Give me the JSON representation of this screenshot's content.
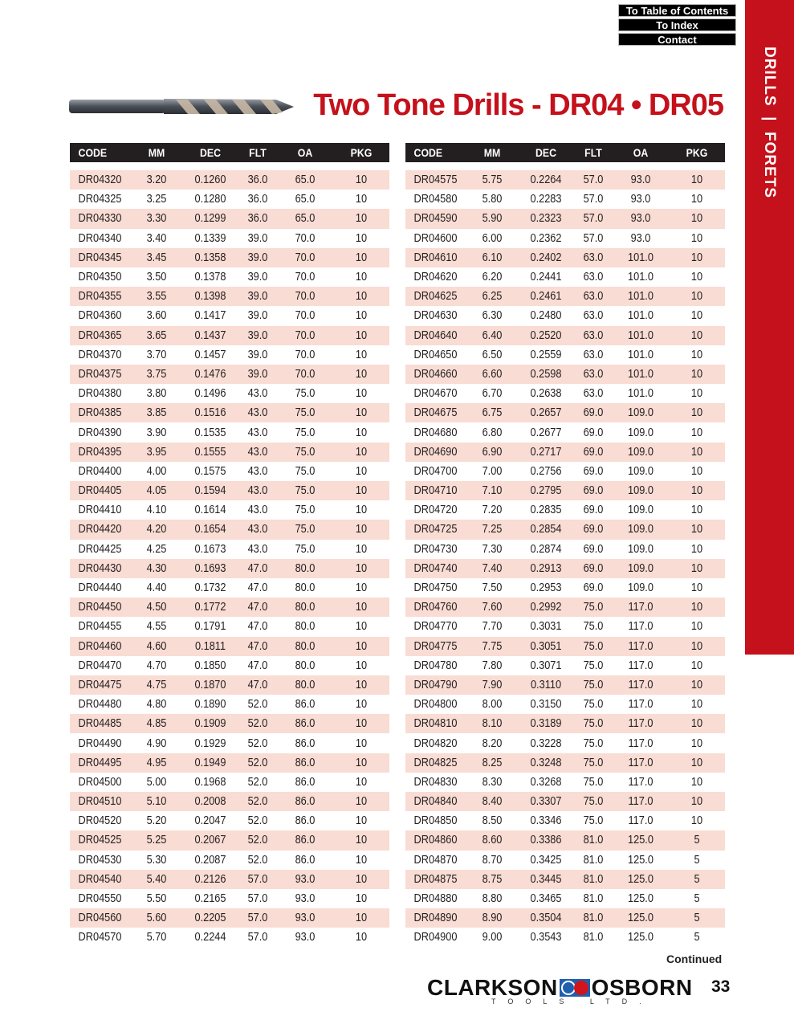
{
  "nav": {
    "toc": "To Table of Contents",
    "index": "To Index",
    "contact": "Contact"
  },
  "sidebar": {
    "label": "DRILLS  |  FORETS",
    "color": "#c4111b"
  },
  "title": "Two Tone Drills - DR04 • DR05",
  "columns": [
    "CODE",
    "MM",
    "DEC",
    "FLT",
    "OA",
    "PKG"
  ],
  "tables": [
    {
      "rows": [
        [
          "DR04320",
          "3.20",
          "0.1260",
          "36.0",
          "65.0",
          "10"
        ],
        [
          "DR04325",
          "3.25",
          "0.1280",
          "36.0",
          "65.0",
          "10"
        ],
        [
          "DR04330",
          "3.30",
          "0.1299",
          "36.0",
          "65.0",
          "10"
        ],
        [
          "DR04340",
          "3.40",
          "0.1339",
          "39.0",
          "70.0",
          "10"
        ],
        [
          "DR04345",
          "3.45",
          "0.1358",
          "39.0",
          "70.0",
          "10"
        ],
        [
          "DR04350",
          "3.50",
          "0.1378",
          "39.0",
          "70.0",
          "10"
        ],
        [
          "DR04355",
          "3.55",
          "0.1398",
          "39.0",
          "70.0",
          "10"
        ],
        [
          "DR04360",
          "3.60",
          "0.1417",
          "39.0",
          "70.0",
          "10"
        ],
        [
          "DR04365",
          "3.65",
          "0.1437",
          "39.0",
          "70.0",
          "10"
        ],
        [
          "DR04370",
          "3.70",
          "0.1457",
          "39.0",
          "70.0",
          "10"
        ],
        [
          "DR04375",
          "3.75",
          "0.1476",
          "39.0",
          "70.0",
          "10"
        ],
        [
          "DR04380",
          "3.80",
          "0.1496",
          "43.0",
          "75.0",
          "10"
        ],
        [
          "DR04385",
          "3.85",
          "0.1516",
          "43.0",
          "75.0",
          "10"
        ],
        [
          "DR04390",
          "3.90",
          "0.1535",
          "43.0",
          "75.0",
          "10"
        ],
        [
          "DR04395",
          "3.95",
          "0.1555",
          "43.0",
          "75.0",
          "10"
        ],
        [
          "DR04400",
          "4.00",
          "0.1575",
          "43.0",
          "75.0",
          "10"
        ],
        [
          "DR04405",
          "4.05",
          "0.1594",
          "43.0",
          "75.0",
          "10"
        ],
        [
          "DR04410",
          "4.10",
          "0.1614",
          "43.0",
          "75.0",
          "10"
        ],
        [
          "DR04420",
          "4.20",
          "0.1654",
          "43.0",
          "75.0",
          "10"
        ],
        [
          "DR04425",
          "4.25",
          "0.1673",
          "43.0",
          "75.0",
          "10"
        ],
        [
          "DR04430",
          "4.30",
          "0.1693",
          "47.0",
          "80.0",
          "10"
        ],
        [
          "DR04440",
          "4.40",
          "0.1732",
          "47.0",
          "80.0",
          "10"
        ],
        [
          "DR04450",
          "4.50",
          "0.1772",
          "47.0",
          "80.0",
          "10"
        ],
        [
          "DR04455",
          "4.55",
          "0.1791",
          "47.0",
          "80.0",
          "10"
        ],
        [
          "DR04460",
          "4.60",
          "0.1811",
          "47.0",
          "80.0",
          "10"
        ],
        [
          "DR04470",
          "4.70",
          "0.1850",
          "47.0",
          "80.0",
          "10"
        ],
        [
          "DR04475",
          "4.75",
          "0.1870",
          "47.0",
          "80.0",
          "10"
        ],
        [
          "DR04480",
          "4.80",
          "0.1890",
          "52.0",
          "86.0",
          "10"
        ],
        [
          "DR04485",
          "4.85",
          "0.1909",
          "52.0",
          "86.0",
          "10"
        ],
        [
          "DR04490",
          "4.90",
          "0.1929",
          "52.0",
          "86.0",
          "10"
        ],
        [
          "DR04495",
          "4.95",
          "0.1949",
          "52.0",
          "86.0",
          "10"
        ],
        [
          "DR04500",
          "5.00",
          "0.1968",
          "52.0",
          "86.0",
          "10"
        ],
        [
          "DR04510",
          "5.10",
          "0.2008",
          "52.0",
          "86.0",
          "10"
        ],
        [
          "DR04520",
          "5.20",
          "0.2047",
          "52.0",
          "86.0",
          "10"
        ],
        [
          "DR04525",
          "5.25",
          "0.2067",
          "52.0",
          "86.0",
          "10"
        ],
        [
          "DR04530",
          "5.30",
          "0.2087",
          "52.0",
          "86.0",
          "10"
        ],
        [
          "DR04540",
          "5.40",
          "0.2126",
          "57.0",
          "93.0",
          "10"
        ],
        [
          "DR04550",
          "5.50",
          "0.2165",
          "57.0",
          "93.0",
          "10"
        ],
        [
          "DR04560",
          "5.60",
          "0.2205",
          "57.0",
          "93.0",
          "10"
        ],
        [
          "DR04570",
          "5.70",
          "0.2244",
          "57.0",
          "93.0",
          "10"
        ]
      ]
    },
    {
      "rows": [
        [
          "DR04575",
          "5.75",
          "0.2264",
          "57.0",
          "93.0",
          "10"
        ],
        [
          "DR04580",
          "5.80",
          "0.2283",
          "57.0",
          "93.0",
          "10"
        ],
        [
          "DR04590",
          "5.90",
          "0.2323",
          "57.0",
          "93.0",
          "10"
        ],
        [
          "DR04600",
          "6.00",
          "0.2362",
          "57.0",
          "93.0",
          "10"
        ],
        [
          "DR04610",
          "6.10",
          "0.2402",
          "63.0",
          "101.0",
          "10"
        ],
        [
          "DR04620",
          "6.20",
          "0.2441",
          "63.0",
          "101.0",
          "10"
        ],
        [
          "DR04625",
          "6.25",
          "0.2461",
          "63.0",
          "101.0",
          "10"
        ],
        [
          "DR04630",
          "6.30",
          "0.2480",
          "63.0",
          "101.0",
          "10"
        ],
        [
          "DR04640",
          "6.40",
          "0.2520",
          "63.0",
          "101.0",
          "10"
        ],
        [
          "DR04650",
          "6.50",
          "0.2559",
          "63.0",
          "101.0",
          "10"
        ],
        [
          "DR04660",
          "6.60",
          "0.2598",
          "63.0",
          "101.0",
          "10"
        ],
        [
          "DR04670",
          "6.70",
          "0.2638",
          "63.0",
          "101.0",
          "10"
        ],
        [
          "DR04675",
          "6.75",
          "0.2657",
          "69.0",
          "109.0",
          "10"
        ],
        [
          "DR04680",
          "6.80",
          "0.2677",
          "69.0",
          "109.0",
          "10"
        ],
        [
          "DR04690",
          "6.90",
          "0.2717",
          "69.0",
          "109.0",
          "10"
        ],
        [
          "DR04700",
          "7.00",
          "0.2756",
          "69.0",
          "109.0",
          "10"
        ],
        [
          "DR04710",
          "7.10",
          "0.2795",
          "69.0",
          "109.0",
          "10"
        ],
        [
          "DR04720",
          "7.20",
          "0.2835",
          "69.0",
          "109.0",
          "10"
        ],
        [
          "DR04725",
          "7.25",
          "0.2854",
          "69.0",
          "109.0",
          "10"
        ],
        [
          "DR04730",
          "7.30",
          "0.2874",
          "69.0",
          "109.0",
          "10"
        ],
        [
          "DR04740",
          "7.40",
          "0.2913",
          "69.0",
          "109.0",
          "10"
        ],
        [
          "DR04750",
          "7.50",
          "0.2953",
          "69.0",
          "109.0",
          "10"
        ],
        [
          "DR04760",
          "7.60",
          "0.2992",
          "75.0",
          "117.0",
          "10"
        ],
        [
          "DR04770",
          "7.70",
          "0.3031",
          "75.0",
          "117.0",
          "10"
        ],
        [
          "DR04775",
          "7.75",
          "0.3051",
          "75.0",
          "117.0",
          "10"
        ],
        [
          "DR04780",
          "7.80",
          "0.3071",
          "75.0",
          "117.0",
          "10"
        ],
        [
          "DR04790",
          "7.90",
          "0.3110",
          "75.0",
          "117.0",
          "10"
        ],
        [
          "DR04800",
          "8.00",
          "0.3150",
          "75.0",
          "117.0",
          "10"
        ],
        [
          "DR04810",
          "8.10",
          "0.3189",
          "75.0",
          "117.0",
          "10"
        ],
        [
          "DR04820",
          "8.20",
          "0.3228",
          "75.0",
          "117.0",
          "10"
        ],
        [
          "DR04825",
          "8.25",
          "0.3248",
          "75.0",
          "117.0",
          "10"
        ],
        [
          "DR04830",
          "8.30",
          "0.3268",
          "75.0",
          "117.0",
          "10"
        ],
        [
          "DR04840",
          "8.40",
          "0.3307",
          "75.0",
          "117.0",
          "10"
        ],
        [
          "DR04850",
          "8.50",
          "0.3346",
          "75.0",
          "117.0",
          "10"
        ],
        [
          "DR04860",
          "8.60",
          "0.3386",
          "81.0",
          "125.0",
          "5"
        ],
        [
          "DR04870",
          "8.70",
          "0.3425",
          "81.0",
          "125.0",
          "5"
        ],
        [
          "DR04875",
          "8.75",
          "0.3445",
          "81.0",
          "125.0",
          "5"
        ],
        [
          "DR04880",
          "8.80",
          "0.3465",
          "81.0",
          "125.0",
          "5"
        ],
        [
          "DR04890",
          "8.90",
          "0.3504",
          "81.0",
          "125.0",
          "5"
        ],
        [
          "DR04900",
          "9.00",
          "0.3543",
          "81.0",
          "125.0",
          "5"
        ]
      ]
    }
  ],
  "continued": "Continued",
  "logo": {
    "left": "CLARKSON",
    "right": "OSBORN",
    "sub": "TOOLS LTD."
  },
  "page_number": "33",
  "colors": {
    "accent_red": "#c4111b",
    "row_alt": "#f9dcd3",
    "header_bg": "#231f20"
  }
}
